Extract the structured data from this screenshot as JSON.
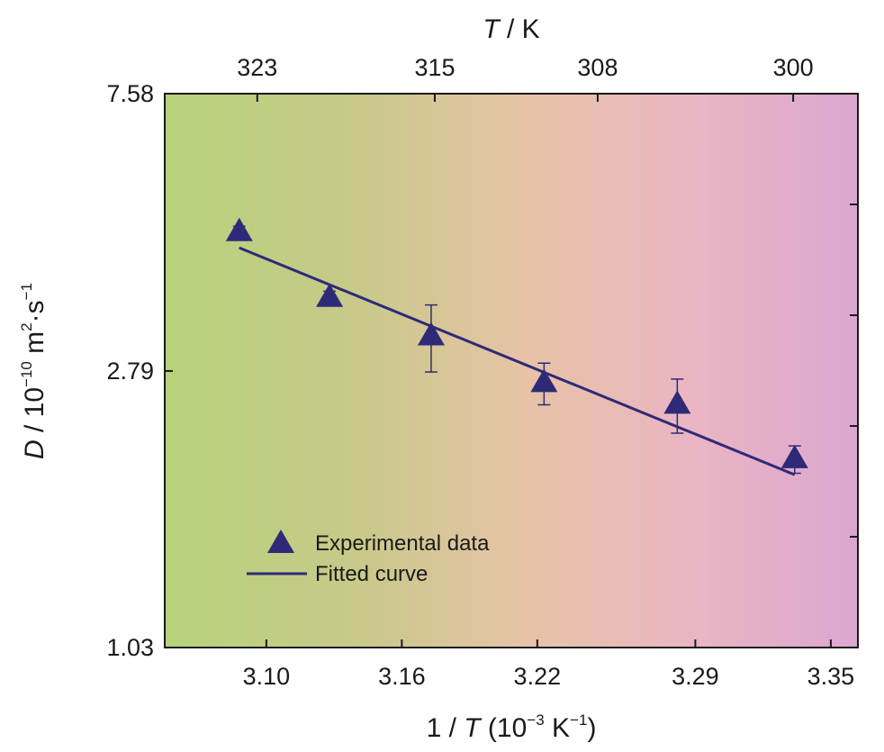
{
  "chart_data": {
    "type": "scatter",
    "x_scale": "linear",
    "y_scale": "log",
    "xlim": [
      3.055,
      3.362
    ],
    "ylim": [
      1.03,
      7.58
    ],
    "x_ticks": [
      3.1,
      3.16,
      3.22,
      3.29,
      3.35
    ],
    "x_tick_labels": [
      "3.10",
      "3.16",
      "3.22",
      "3.29",
      "3.35"
    ],
    "y_ticks": [
      1.03,
      2.79,
      7.58
    ],
    "y_tick_labels": [
      "1.03",
      "2.79",
      "7.58"
    ],
    "top_ticks": [
      323,
      315,
      308,
      300
    ],
    "top_tick_labels": [
      "323",
      "315",
      "308",
      "300"
    ],
    "xlabel": {
      "pre": "1 / ",
      "var": "T",
      "mid": " (10",
      "exp1": "−3",
      "unit": " K",
      "exp2": "−1",
      "post": ")"
    },
    "ylabel": {
      "var": "D",
      "mid": " / 10",
      "exp1": "−10",
      "unit": " m",
      "exp2": "2",
      "dot": "·s",
      "exp3": "−1"
    },
    "top_label": {
      "var": "T",
      "post": " / K"
    },
    "legend": {
      "position": "lower-left",
      "entries": [
        {
          "kind": "marker",
          "label": "Experimental data"
        },
        {
          "kind": "line",
          "label": "Fitted curve"
        }
      ]
    },
    "series": [
      {
        "kind": "scatter",
        "marker": "triangle",
        "color": "#2e2a78",
        "points": [
          {
            "x": 3.088,
            "y": 4.6,
            "err": 0.1
          },
          {
            "x": 3.128,
            "y": 3.63,
            "err": 0.09
          },
          {
            "x": 3.173,
            "y": 3.16,
            "err": 0.38
          },
          {
            "x": 3.223,
            "y": 2.67,
            "err": 0.2
          },
          {
            "x": 3.282,
            "y": 2.47,
            "err": 0.24
          },
          {
            "x": 3.334,
            "y": 2.03,
            "err": 0.1
          }
        ]
      },
      {
        "kind": "line",
        "color": "#2e2a78",
        "points": [
          {
            "x": 3.088,
            "y": 4.35
          },
          {
            "x": 3.334,
            "y": 1.92
          }
        ]
      }
    ],
    "background_gradient": [
      "#b6d37a",
      "#c8c98a",
      "#e7c3a6",
      "#eab5c2",
      "#dca6d1"
    ],
    "text_color": "#1a1a1a"
  }
}
